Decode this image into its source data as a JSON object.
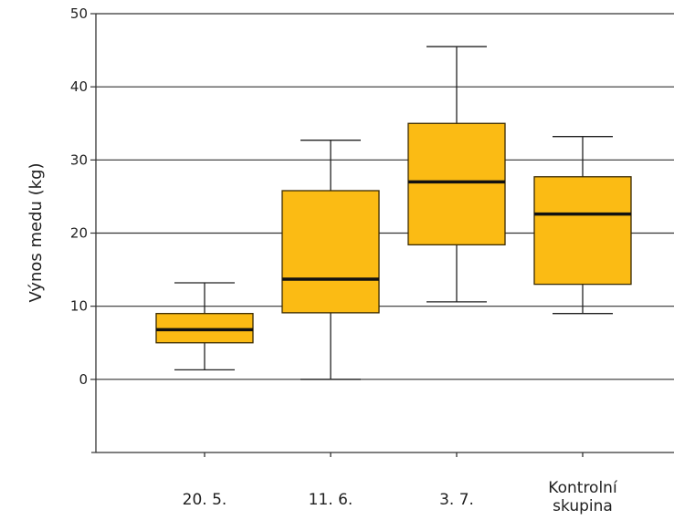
{
  "chart_data": {
    "type": "boxplot",
    "title": "",
    "xlabel": "",
    "ylabel": "Výnos medu (kg)",
    "ylim": [
      -10,
      50
    ],
    "yticks": [
      0,
      10,
      20,
      30,
      40,
      50
    ],
    "grid": true,
    "colors": {
      "box": "#fbbb14",
      "box_stroke": "#3a2a00",
      "median": "#111111",
      "grid": "#333333"
    },
    "categories": [
      {
        "label_lines": [
          "20. 5."
        ],
        "min": 1.3,
        "q1": 5.0,
        "median": 6.8,
        "q3": 9.0,
        "max": 13.2
      },
      {
        "label_lines": [
          "11. 6."
        ],
        "min": 0.0,
        "q1": 9.1,
        "median": 13.7,
        "q3": 25.8,
        "max": 32.7
      },
      {
        "label_lines": [
          "3. 7."
        ],
        "min": 10.6,
        "q1": 18.4,
        "median": 27.0,
        "q3": 35.0,
        "max": 45.5
      },
      {
        "label_lines": [
          "Kontrolní",
          "skupina"
        ],
        "min": 9.0,
        "q1": 13.0,
        "median": 22.6,
        "q3": 27.7,
        "max": 33.2
      }
    ]
  }
}
